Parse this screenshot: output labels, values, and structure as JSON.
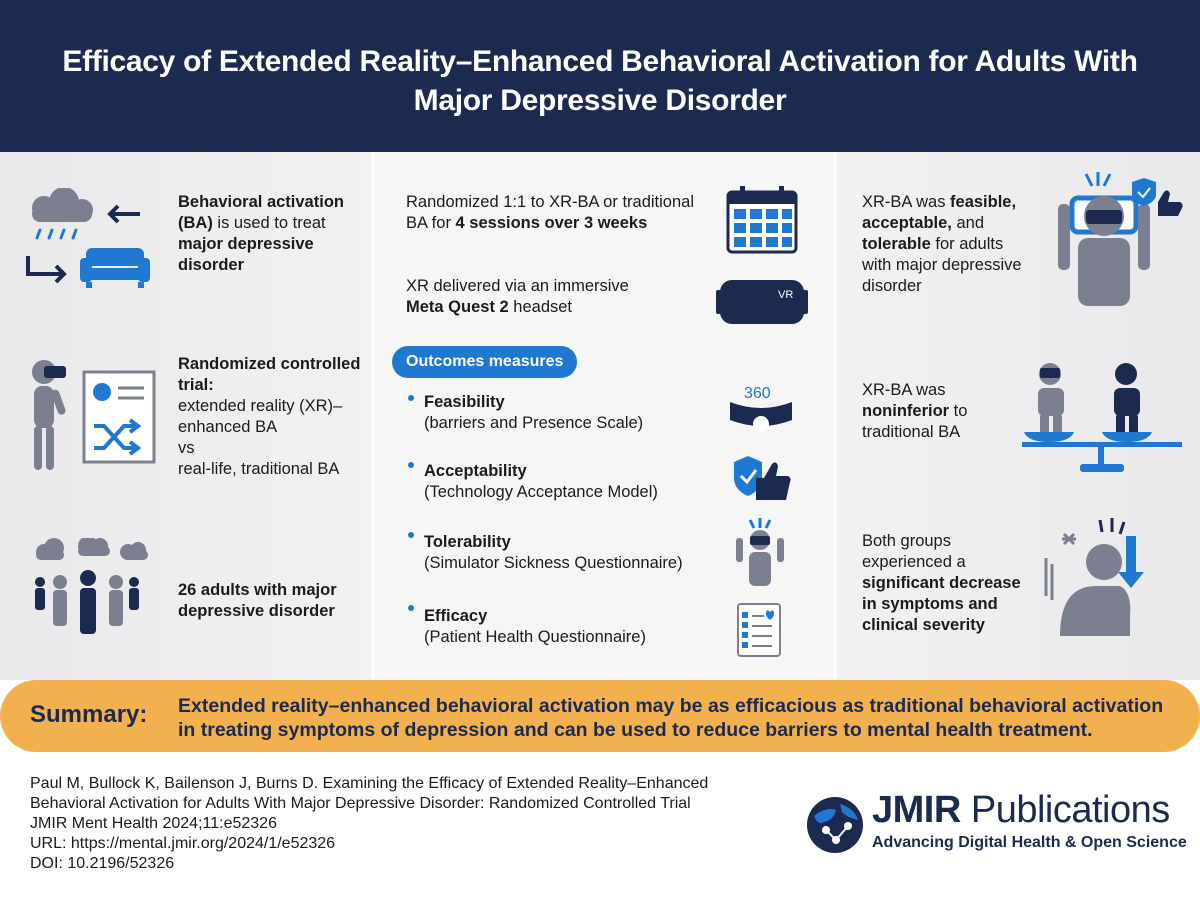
{
  "title": "Efficacy of Extended Reality–Enhanced Behavioral Activation for Adults With Major Depressive Disorder",
  "colors": {
    "navy": "#1c2a4f",
    "blue": "#1f78d1",
    "gray": "#7b7f8f",
    "summary_bg": "#f3b04e"
  },
  "left": {
    "block1": {
      "p1": "Behavioral activation",
      "p2": "(BA)",
      "p3": " is used to treat ",
      "p4": "major depressive disorder",
      "icons": [
        "rain-cloud-icon",
        "arrow-icon",
        "couch-icon"
      ]
    },
    "block2": {
      "p1": "Randomized controlled trial:",
      "p2": "extended reality (XR)–enhanced BA",
      "p3": "vs",
      "p4": "real-life, traditional BA",
      "icons": [
        "vr-person-icon",
        "document-shuffle-icon"
      ]
    },
    "block3": {
      "p1": "26 adults with major depressive disorder",
      "icons": [
        "crowd-with-clouds-icon"
      ]
    }
  },
  "middle": {
    "randomized": {
      "p1": "Randomized 1:1 to XR-BA or traditional BA for ",
      "p2": "4 sessions over 3 weeks",
      "icon": "calendar-icon"
    },
    "xr": {
      "p1": "XR delivered via an immersive ",
      "p2": "Meta Quest 2",
      "p3": " headset",
      "icon": "vr-headset-icon",
      "icon_label": "VR"
    },
    "outcomes_label": "Outcomes measures",
    "outcomes": [
      {
        "name": "Feasibility",
        "detail": "(barriers and Presence Scale)",
        "icon": "360-headset-icon",
        "icon_label": "360"
      },
      {
        "name": "Acceptability",
        "detail": "(Technology Acceptance Model)",
        "icon": "shield-thumbs-up-icon"
      },
      {
        "name": "Tolerability",
        "detail": "(Simulator Sickness Questionnaire)",
        "icon": "dizzy-vr-person-icon"
      },
      {
        "name": "Efficacy",
        "detail": "(Patient Health Questionnaire)",
        "icon": "questionnaire-icon"
      }
    ]
  },
  "right": {
    "block1": {
      "p1": "XR-BA was ",
      "p2": "feasible, acceptable,",
      "p3": " and ",
      "p4": "tolerable",
      "p5": " for adults with major depressive disorder",
      "icon": "vr-person-approval-icon"
    },
    "block2": {
      "p1": "XR-BA was ",
      "p2": "noninferior",
      "p3": " to traditional BA",
      "icon": "balance-scale-icon"
    },
    "block3": {
      "p1": "Both groups experienced a ",
      "p2": "significant decrease in symptoms and clinical severity",
      "icon": "distressed-person-down-arrow-icon"
    }
  },
  "summary": {
    "label": "Summary:",
    "text": "Extended reality–enhanced behavioral activation may be as efficacious as traditional behavioral activation in treating symptoms of depression and can be used to reduce barriers to mental health treatment."
  },
  "citation": {
    "line1": "Paul M, Bullock K, Bailenson J, Burns D. Examining the Efficacy of Extended Reality–Enhanced",
    "line2": "Behavioral Activation for Adults With Major Depressive Disorder: Randomized Controlled Trial",
    "line3": "JMIR Ment Health 2024;11:e52326",
    "line4": "URL: https://mental.jmir.org/2024/1/e52326",
    "line5": "DOI: 10.2196/52326"
  },
  "logo": {
    "name_strong": "JMIR",
    "name_rest": " Publications",
    "tagline": "Advancing Digital Health & Open Science",
    "icon": "jmir-globe-logo-icon"
  }
}
